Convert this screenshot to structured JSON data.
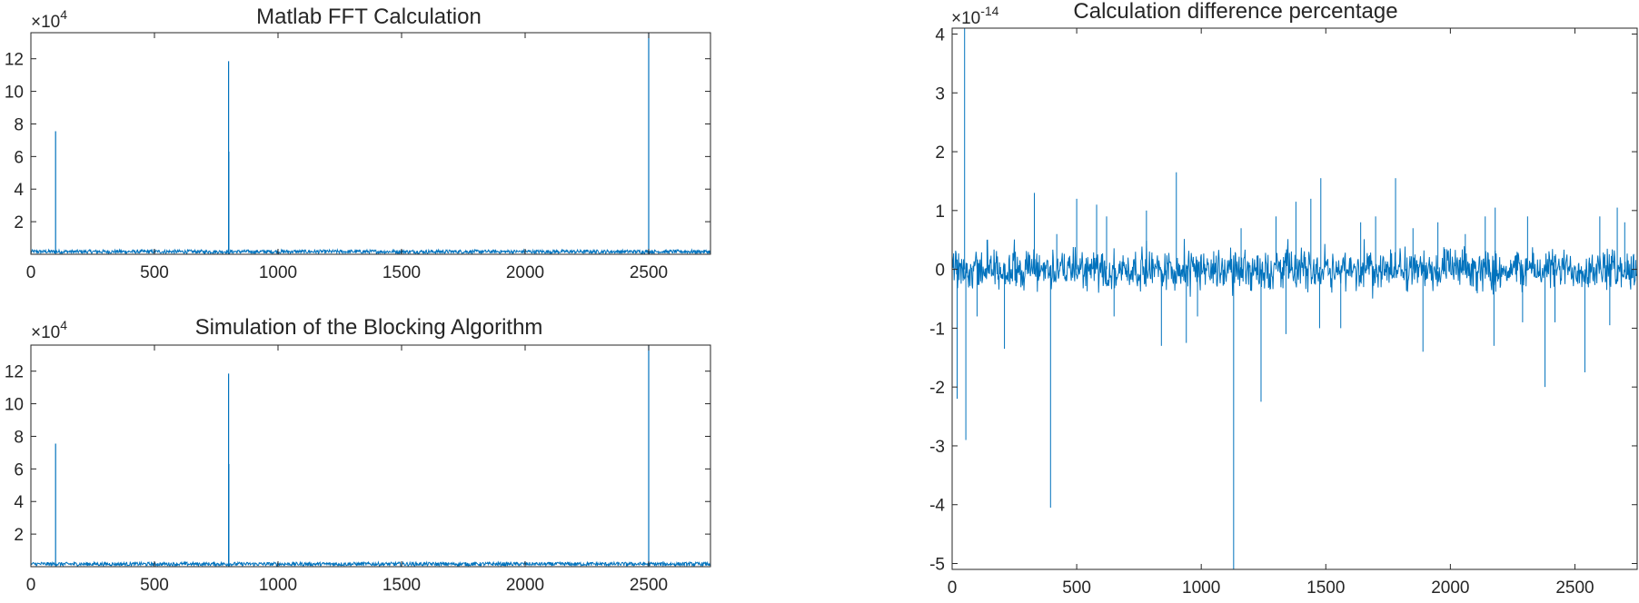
{
  "colors": {
    "line": "#0072BD",
    "axis": "#262626",
    "background": "#ffffff"
  },
  "chart_data": [
    {
      "type": "line",
      "title": "Matlab FFT Calculation",
      "xlim": [
        0,
        2750
      ],
      "ylim": [
        0,
        136000
      ],
      "grid": false,
      "x_ticks": [
        0,
        500,
        1000,
        1500,
        2000,
        2500
      ],
      "y_ticks": [
        20000,
        40000,
        60000,
        80000,
        100000,
        120000
      ],
      "y_tick_labels": [
        "2",
        "4",
        "6",
        "8",
        "10",
        "12"
      ],
      "y_multiplier": {
        "base": "×10",
        "exponent": "4"
      },
      "noise_floor": 2500,
      "peaks": [
        {
          "x": 100,
          "y": 75500
        },
        {
          "x": 800,
          "y": 118500
        },
        {
          "x": 801,
          "y": 63000
        },
        {
          "x": 2500,
          "y": 136000
        }
      ]
    },
    {
      "type": "line",
      "title": "Simulation of the Blocking Algorithm",
      "xlim": [
        0,
        2750
      ],
      "ylim": [
        0,
        136000
      ],
      "grid": false,
      "x_ticks": [
        0,
        500,
        1000,
        1500,
        2000,
        2500
      ],
      "y_ticks": [
        20000,
        40000,
        60000,
        80000,
        100000,
        120000
      ],
      "y_tick_labels": [
        "2",
        "4",
        "6",
        "8",
        "10",
        "12"
      ],
      "y_multiplier": {
        "base": "×10",
        "exponent": "4"
      },
      "noise_floor": 2500,
      "peaks": [
        {
          "x": 100,
          "y": 75500
        },
        {
          "x": 800,
          "y": 118500
        },
        {
          "x": 801,
          "y": 63000
        },
        {
          "x": 2500,
          "y": 136000
        }
      ]
    },
    {
      "type": "line",
      "title": "Calculation difference percentage",
      "xlim": [
        0,
        2750
      ],
      "ylim": [
        -5.1,
        4.1
      ],
      "grid": false,
      "x_ticks": [
        0,
        500,
        1000,
        1500,
        2000,
        2500
      ],
      "y_ticks": [
        -5,
        -4,
        -3,
        -2,
        -1,
        0,
        1,
        2,
        3,
        4
      ],
      "y_tick_labels": [
        "-5",
        "-4",
        "-3",
        "-2",
        "-1",
        "0",
        "1",
        "2",
        "3",
        "4"
      ],
      "y_multiplier": {
        "base": "×10",
        "exponent": "-14"
      },
      "noise_amplitude": 0.3,
      "spikes": [
        {
          "x": 20,
          "y": -2.2
        },
        {
          "x": 50,
          "y": 4.1
        },
        {
          "x": 55,
          "y": -2.9
        },
        {
          "x": 100,
          "y": -0.8
        },
        {
          "x": 140,
          "y": 0.5
        },
        {
          "x": 210,
          "y": -1.35
        },
        {
          "x": 330,
          "y": 1.3
        },
        {
          "x": 395,
          "y": -4.05
        },
        {
          "x": 420,
          "y": 0.6
        },
        {
          "x": 500,
          "y": 1.2
        },
        {
          "x": 580,
          "y": 1.1
        },
        {
          "x": 620,
          "y": 0.9
        },
        {
          "x": 650,
          "y": -0.8
        },
        {
          "x": 780,
          "y": 1.0
        },
        {
          "x": 840,
          "y": -1.3
        },
        {
          "x": 900,
          "y": 1.65
        },
        {
          "x": 940,
          "y": -1.25
        },
        {
          "x": 985,
          "y": -0.8
        },
        {
          "x": 1130,
          "y": -5.1
        },
        {
          "x": 1160,
          "y": 0.7
        },
        {
          "x": 1240,
          "y": -2.25
        },
        {
          "x": 1300,
          "y": 0.9
        },
        {
          "x": 1340,
          "y": -1.1
        },
        {
          "x": 1380,
          "y": 1.15
        },
        {
          "x": 1440,
          "y": 1.2
        },
        {
          "x": 1480,
          "y": 1.55
        },
        {
          "x": 1475,
          "y": -1.0
        },
        {
          "x": 1560,
          "y": -1.0
        },
        {
          "x": 1640,
          "y": 0.8
        },
        {
          "x": 1700,
          "y": 0.9
        },
        {
          "x": 1780,
          "y": 1.55
        },
        {
          "x": 1850,
          "y": 0.7
        },
        {
          "x": 1890,
          "y": -1.4
        },
        {
          "x": 1950,
          "y": 0.8
        },
        {
          "x": 2060,
          "y": 0.6
        },
        {
          "x": 2140,
          "y": 0.9
        },
        {
          "x": 2180,
          "y": 1.05
        },
        {
          "x": 2175,
          "y": -1.3
        },
        {
          "x": 2290,
          "y": -0.9
        },
        {
          "x": 2310,
          "y": 0.9
        },
        {
          "x": 2380,
          "y": -2.0
        },
        {
          "x": 2420,
          "y": -0.9
        },
        {
          "x": 2540,
          "y": -1.75
        },
        {
          "x": 2600,
          "y": 0.9
        },
        {
          "x": 2670,
          "y": 1.05
        },
        {
          "x": 2640,
          "y": -0.95
        },
        {
          "x": 2700,
          "y": 0.8
        }
      ]
    }
  ]
}
